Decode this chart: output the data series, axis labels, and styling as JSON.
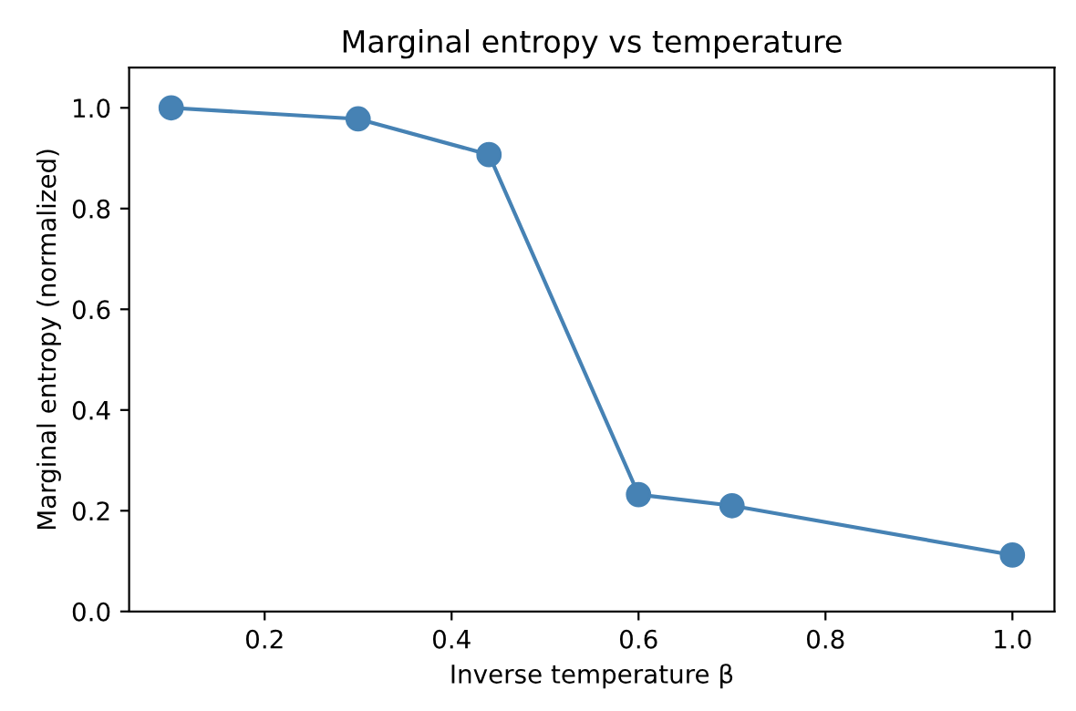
{
  "chart_data": {
    "type": "line",
    "title": "Marginal entropy vs temperature",
    "xlabel": "Inverse temperature β",
    "ylabel": "Marginal entropy (normalized)",
    "x": [
      0.1,
      0.3,
      0.44,
      0.6,
      0.7,
      1.0
    ],
    "series": [
      {
        "color": "#4682b4",
        "values": [
          1.0,
          0.978,
          0.907,
          0.232,
          0.21,
          0.112
        ]
      }
    ],
    "xlim": [
      0.055,
      1.045
    ],
    "xticks": [
      0.2,
      0.4,
      0.6,
      0.8,
      {
        "value": 1,
        "label": "1.0"
      }
    ],
    "ylim": [
      0,
      1.08
    ],
    "yticks": [
      {
        "value": 0,
        "label": "0.0"
      },
      0.2,
      0.4,
      0.6,
      0.8,
      {
        "value": 1,
        "label": "1.0"
      }
    ],
    "marker": "circle",
    "grid": false,
    "legend": false
  }
}
